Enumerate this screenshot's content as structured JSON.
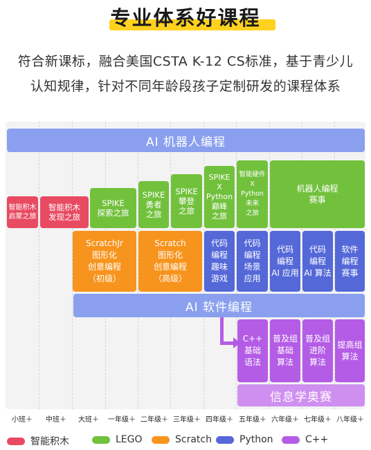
{
  "title": "专业体系好课程",
  "intro": {
    "line1": "符合新课标，融合美国CSTA K-12 CS标准，基于青少儿",
    "line2": "认知规律，针对不同年龄段孩子定制研发的课程体系"
  },
  "bands": {
    "robot": "AI 机器人编程",
    "software": "AI 软件编程",
    "olympiad": "信息学奥赛"
  },
  "cells": {
    "pink1": "智能积木\n启蒙之旅",
    "pink2": "智能积木\n发现之旅",
    "lego1": "SPIKE\n探索之旅",
    "lego2": "SPIKE\n勇者\n之旅",
    "lego3": "SPIKE\n攀登\n之旅",
    "lego4": "SPIKE\nX\nPython\n巅峰\n之旅",
    "lego5": "智能硬件\nX\nPython\n未来\n之旅",
    "lego6": "机器人编程\n赛事",
    "orange1": "ScratchJr\n图形化\n创意编程\n（初级）",
    "orange2": "Scratch\n图形化\n创意编程\n（高级）",
    "blue1": "代码\n编程\n趣味\n游戏",
    "blue2": "代码\n编程\n场景\n应用",
    "blue3": "代码\n编程\nAI 应用",
    "blue4": "代码\n编程\nAI 算法",
    "blue5": "软件\n编程\n赛事",
    "purple1": "C++\n基础\n语法",
    "purple2": "普及组\n基础\n算法",
    "purple3": "普及组\n进阶\n算法",
    "purple4": "提高组\n算法"
  },
  "grades": [
    "小班＋",
    "中班＋",
    "大班＋",
    "一年级＋",
    "二年级＋",
    "三年级＋",
    "四年级＋",
    "五年级＋",
    "六年级＋",
    "七年级＋",
    "八年级＋"
  ],
  "legend": [
    {
      "label": "智能积木",
      "color": "#e84a62"
    },
    {
      "label": "LEGO",
      "color": "#72c13d"
    },
    {
      "label": "Scratch",
      "color": "#f7941d"
    },
    {
      "label": "Python",
      "color": "#5468d8"
    },
    {
      "label": "C++",
      "color": "#b45ce6"
    }
  ]
}
